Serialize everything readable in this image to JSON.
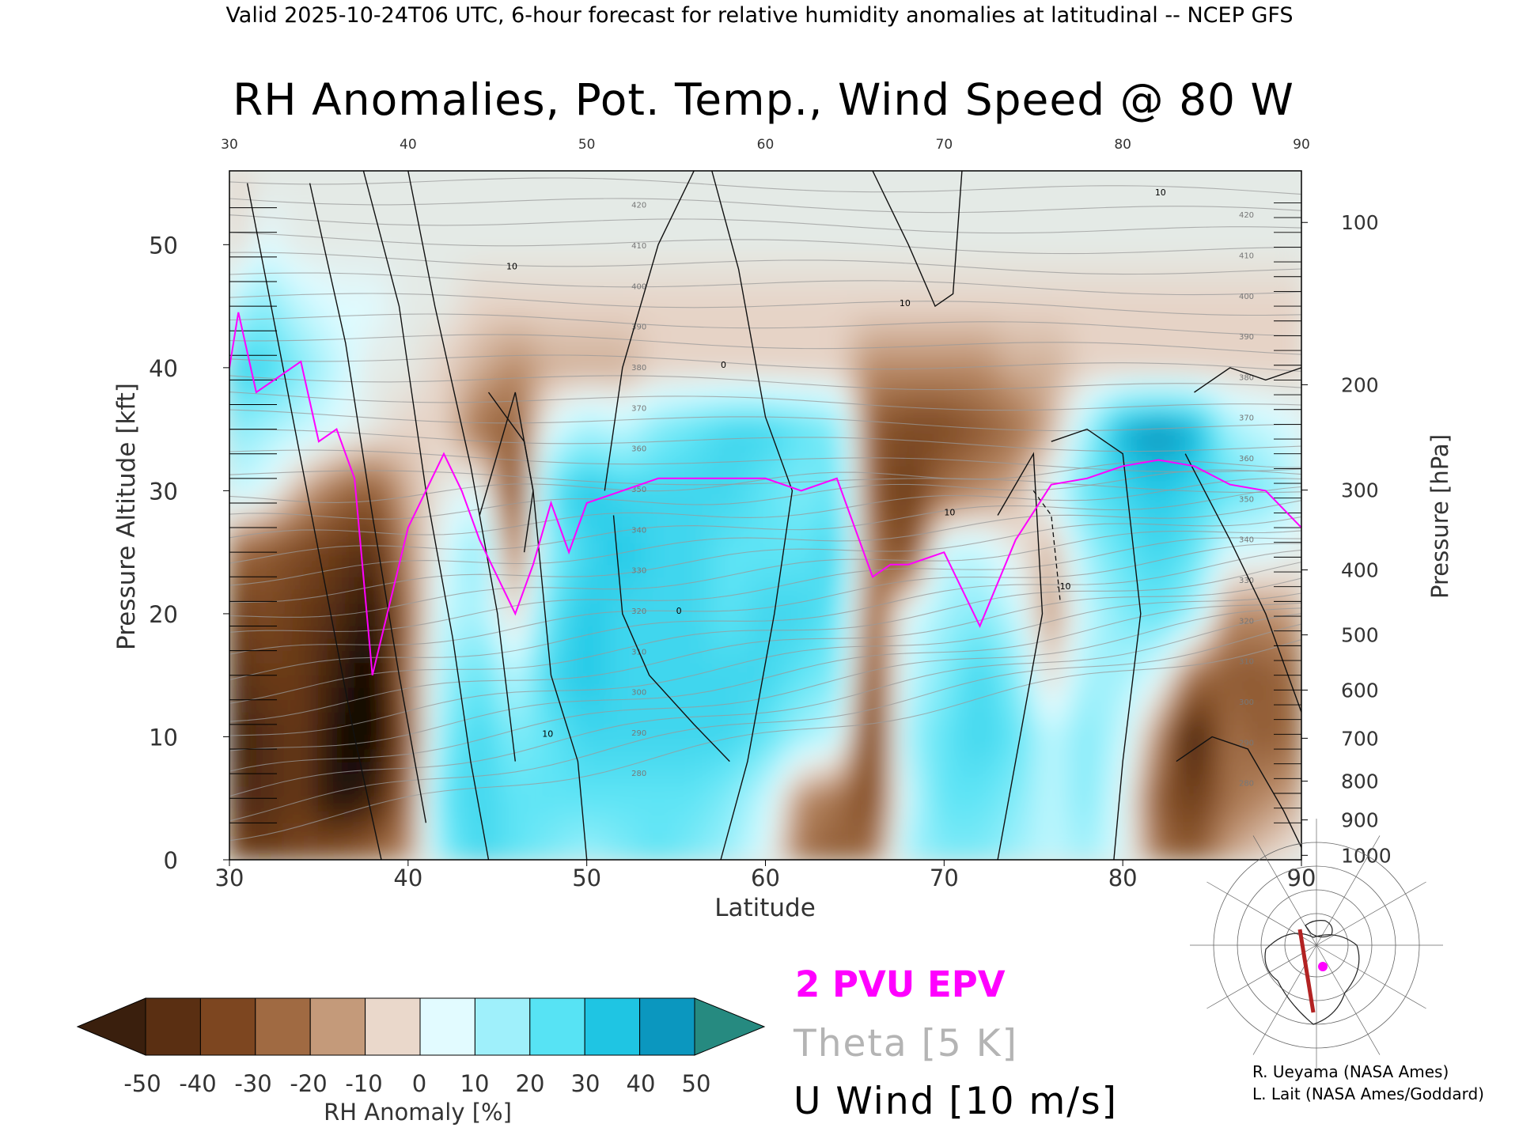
{
  "header_line": "Valid 2025-10-24T06 UTC, 6-hour forecast for relative humidity anomalies at latitudinal -- NCEP GFS",
  "chart_data": {
    "type": "heatmap",
    "title": "RH Anomalies, Pot. Temp., Wind Speed @ 80 W",
    "xlabel": "Latitude",
    "ylabel_left": "Pressure Altitude [kft]",
    "ylabel_right": "Pressure [hPa]",
    "x_ticks": [
      30,
      40,
      50,
      60,
      70,
      80,
      90
    ],
    "y_ticks_kft": [
      0,
      10,
      20,
      30,
      40,
      50
    ],
    "pressure_ticks": [
      "100",
      "200",
      "300",
      "400",
      "500",
      "600",
      "700",
      "800",
      "900",
      "1000"
    ],
    "pressure_tick_values_hpa": [
      100,
      200,
      300,
      400,
      500,
      600,
      700,
      800,
      900,
      1000
    ],
    "xlim": [
      30,
      90
    ],
    "ylim_kft": [
      0,
      56
    ],
    "colorbar": {
      "label": "RH Anomaly [%]",
      "ticks": [
        "-50",
        "-40",
        "-30",
        "-20",
        "-10",
        "0",
        "10",
        "20",
        "30",
        "40",
        "50"
      ],
      "colors": [
        "#3a1f0d",
        "#5a2f12",
        "#7d4620",
        "#a06a42",
        "#c49a7a",
        "#ead8cb",
        "#e2fbff",
        "#9ff0fb",
        "#57e3f4",
        "#1fc5e3",
        "#0b97bf",
        "#0a6d92",
        "#268a80"
      ]
    },
    "legend": [
      {
        "label": "2 PVU EPV",
        "color": "#ff00ff"
      },
      {
        "label": "Theta [5 K]",
        "color": "#a9a9a9"
      },
      {
        "label": "U Wind [10 m/s]",
        "color": "#000000"
      }
    ],
    "rh_anomaly_columns": {
      "levels_kft": [
        0,
        5,
        10,
        15,
        20,
        25,
        30,
        35,
        40,
        45,
        50,
        55
      ],
      "latitudes": [
        30,
        32,
        34,
        36,
        38,
        40,
        42,
        44,
        46,
        48,
        50,
        52,
        54,
        56,
        58,
        60,
        62,
        64,
        66,
        68,
        70,
        72,
        74,
        76,
        78,
        80,
        82,
        84,
        86,
        88,
        90
      ],
      "values": [
        [
          -30,
          -40,
          -45,
          -40,
          -35,
          -20,
          10,
          20,
          30,
          10,
          -5,
          -5
        ],
        [
          -35,
          -40,
          -40,
          -35,
          -30,
          -25,
          5,
          15,
          30,
          20,
          5,
          0
        ],
        [
          -30,
          -35,
          -35,
          -35,
          -35,
          -30,
          -10,
          10,
          20,
          10,
          0,
          0
        ],
        [
          -25,
          -50,
          -50,
          -45,
          -40,
          -35,
          -20,
          5,
          10,
          5,
          0,
          0
        ],
        [
          -20,
          -45,
          -55,
          -55,
          -50,
          -40,
          -25,
          0,
          0,
          5,
          0,
          0
        ],
        [
          -15,
          -20,
          -25,
          -20,
          -20,
          -15,
          -10,
          -5,
          0,
          0,
          0,
          0
        ],
        [
          20,
          25,
          20,
          15,
          10,
          5,
          0,
          -5,
          -5,
          0,
          0,
          0
        ],
        [
          30,
          30,
          30,
          25,
          15,
          20,
          5,
          -20,
          -10,
          -5,
          0,
          0
        ],
        [
          25,
          25,
          20,
          10,
          -5,
          -20,
          -30,
          -25,
          -15,
          -5,
          0,
          0
        ],
        [
          20,
          25,
          25,
          30,
          25,
          20,
          25,
          5,
          -10,
          -5,
          0,
          0
        ],
        [
          15,
          25,
          30,
          35,
          35,
          30,
          35,
          15,
          -10,
          -5,
          0,
          0
        ],
        [
          20,
          25,
          30,
          30,
          30,
          35,
          30,
          10,
          -10,
          -5,
          0,
          0
        ],
        [
          25,
          25,
          30,
          30,
          30,
          30,
          30,
          20,
          -5,
          -5,
          0,
          0
        ],
        [
          20,
          25,
          30,
          30,
          30,
          30,
          30,
          25,
          -5,
          -5,
          0,
          0
        ],
        [
          15,
          20,
          30,
          30,
          25,
          25,
          30,
          30,
          -5,
          -5,
          0,
          0
        ],
        [
          5,
          10,
          25,
          30,
          30,
          25,
          25,
          30,
          -5,
          -5,
          0,
          0
        ],
        [
          -20,
          -15,
          15,
          25,
          30,
          25,
          20,
          25,
          -5,
          -5,
          0,
          0
        ],
        [
          -25,
          -20,
          10,
          20,
          25,
          30,
          25,
          20,
          -5,
          -5,
          0,
          0
        ],
        [
          -20,
          -30,
          -35,
          -30,
          -25,
          -20,
          -25,
          -25,
          -15,
          -5,
          0,
          0
        ],
        [
          15,
          10,
          15,
          10,
          5,
          -30,
          -35,
          -30,
          -15,
          -5,
          0,
          0
        ],
        [
          20,
          25,
          25,
          20,
          15,
          10,
          -20,
          -30,
          -15,
          -5,
          0,
          0
        ],
        [
          20,
          25,
          30,
          30,
          20,
          10,
          -15,
          -25,
          -15,
          -5,
          0,
          0
        ],
        [
          15,
          20,
          25,
          20,
          10,
          0,
          -10,
          -20,
          -10,
          -5,
          0,
          0
        ],
        [
          10,
          10,
          10,
          -5,
          -15,
          -10,
          5,
          -10,
          -10,
          -5,
          0,
          0
        ],
        [
          15,
          20,
          20,
          15,
          10,
          15,
          25,
          15,
          -5,
          -5,
          0,
          0
        ],
        [
          5,
          5,
          10,
          15,
          20,
          25,
          30,
          40,
          -5,
          -5,
          0,
          0
        ],
        [
          -20,
          -25,
          -15,
          5,
          25,
          30,
          35,
          45,
          -5,
          -5,
          0,
          0
        ],
        [
          -25,
          -35,
          -45,
          -20,
          15,
          25,
          30,
          40,
          -5,
          -5,
          0,
          0
        ],
        [
          -10,
          -20,
          -20,
          -25,
          -15,
          5,
          25,
          15,
          -5,
          -5,
          0,
          0
        ],
        [
          -5,
          -15,
          -25,
          -25,
          -15,
          5,
          20,
          10,
          -5,
          -5,
          0,
          0
        ],
        [
          0,
          -10,
          -20,
          -20,
          -10,
          0,
          10,
          5,
          -5,
          -5,
          0,
          0
        ]
      ]
    },
    "epv_2pvu_line": [
      [
        30,
        40
      ],
      [
        30.5,
        44.5
      ],
      [
        31.5,
        38
      ],
      [
        32.5,
        39
      ],
      [
        34,
        40.5
      ],
      [
        35,
        34
      ],
      [
        36,
        35
      ],
      [
        37,
        31
      ],
      [
        38,
        15
      ],
      [
        40,
        27
      ],
      [
        42,
        33
      ],
      [
        43,
        30
      ],
      [
        44,
        26
      ],
      [
        46,
        20
      ],
      [
        47,
        24
      ],
      [
        48,
        29
      ],
      [
        49,
        25
      ],
      [
        50,
        29
      ],
      [
        52,
        30
      ],
      [
        54,
        31
      ],
      [
        56,
        31
      ],
      [
        58,
        31
      ],
      [
        60,
        31
      ],
      [
        62,
        30
      ],
      [
        64,
        31
      ],
      [
        66,
        23
      ],
      [
        67,
        24
      ],
      [
        68,
        24
      ],
      [
        70,
        25
      ],
      [
        72,
        19
      ],
      [
        74,
        26
      ],
      [
        76,
        30.5
      ],
      [
        78,
        31
      ],
      [
        80,
        32
      ],
      [
        82,
        32.5
      ],
      [
        84,
        32
      ],
      [
        86,
        30.5
      ],
      [
        88,
        30
      ],
      [
        90,
        27
      ]
    ],
    "theta_levels_K": [
      280,
      290,
      300,
      310,
      320,
      330,
      340,
      350,
      360,
      370,
      380,
      390,
      400,
      410,
      420
    ],
    "u_wind_contour_labels": [
      "0",
      "10",
      "-10"
    ],
    "credits": [
      "R. Ueyama (NASA Ames)",
      "L. Lait (NASA Ames/Goddard)"
    ]
  }
}
